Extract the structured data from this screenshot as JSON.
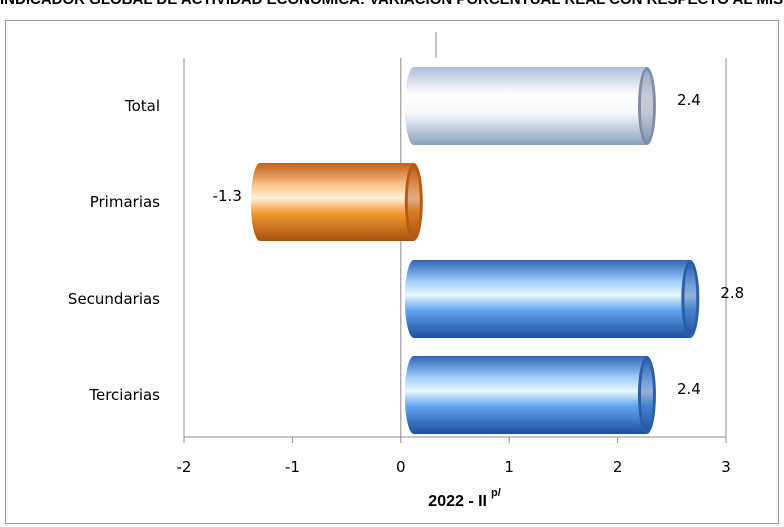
{
  "header_text": "INDICADOR GLOBAL DE ACTIVIDAD ECONÓMICA: VARIACIÓN PORCENTUAL REAL CON RESPECTO AL MISMO PERIODO DEL AÑO ANTERIOR",
  "chart_data": {
    "type": "bar",
    "orientation": "horizontal",
    "categories": [
      "Total",
      "Primarias",
      "Secundarias",
      "Terciarias"
    ],
    "values": [
      2.4,
      -1.3,
      2.8,
      2.4
    ],
    "value_labels": [
      "2.4",
      "-1.3",
      "2.8",
      "2.4"
    ],
    "xlabel": "2022 - II",
    "xlabel_superscript": "p/",
    "xlim": [
      -2,
      3
    ],
    "xticks": [
      "-2",
      "-1",
      "0",
      "1",
      "2",
      "3"
    ],
    "grid": "vertical",
    "colors": {
      "Total": "#c9d6ea",
      "Primarias": "#e8862a",
      "Secundarias": "#3d7fd9",
      "Terciarias": "#3d7fd9"
    }
  }
}
